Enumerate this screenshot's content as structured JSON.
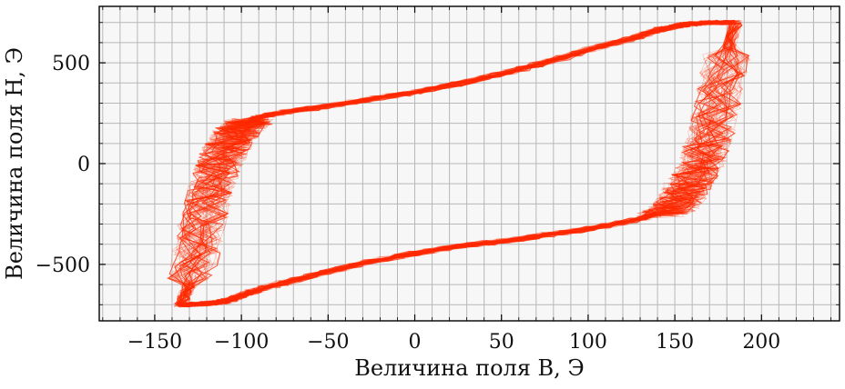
{
  "chart_data": {
    "type": "line",
    "title": "",
    "xlabel": "Величина поля B, Э",
    "ylabel": "Величина поля H, Э",
    "xlim": [
      -182,
      245
    ],
    "ylim": [
      -780,
      780
    ],
    "xticks": [
      -150,
      -100,
      -50,
      0,
      50,
      100,
      150,
      200
    ],
    "xtick_labels": [
      "−150",
      "−100",
      "−50",
      "0",
      "50",
      "100",
      "150",
      "200"
    ],
    "yticks": [
      -500,
      0,
      500
    ],
    "ytick_labels": [
      "−500",
      "0",
      "500"
    ],
    "x_minor_step": 10,
    "y_minor_step": 100,
    "grid": true,
    "legend": "none",
    "series": [
      {
        "style": "hysteresis loop, many overlapping noisy traces",
        "color": "#ff2a00",
        "upper_branch": {
          "x": [
            -135,
            -130,
            -125,
            -120,
            -115,
            -110,
            -105,
            -100,
            -95,
            -90,
            -75,
            -50,
            -25,
            0,
            25,
            50,
            75,
            100,
            125,
            140,
            150,
            155,
            160,
            165,
            170,
            175,
            180,
            185
          ],
          "y": [
            -700,
            -700,
            -697,
            -693,
            -690,
            -685,
            -672,
            -655,
            -640,
            -625,
            -590,
            -535,
            -485,
            -445,
            -410,
            -385,
            -355,
            -325,
            -285,
            -250,
            -215,
            -150,
            -80,
            0,
            120,
            300,
            530,
            690
          ]
        },
        "lower_branch": {
          "x": [
            185,
            170,
            160,
            155,
            150,
            140,
            125,
            100,
            75,
            50,
            25,
            0,
            -25,
            -50,
            -75,
            -90,
            -95,
            -100,
            -105,
            -110,
            -115,
            -120,
            -125,
            -130,
            -135
          ],
          "y": [
            700,
            700,
            693,
            690,
            680,
            662,
            620,
            565,
            500,
            445,
            395,
            355,
            320,
            285,
            255,
            230,
            210,
            180,
            130,
            50,
            -50,
            -200,
            -400,
            -600,
            -700
          ]
        }
      }
    ]
  }
}
